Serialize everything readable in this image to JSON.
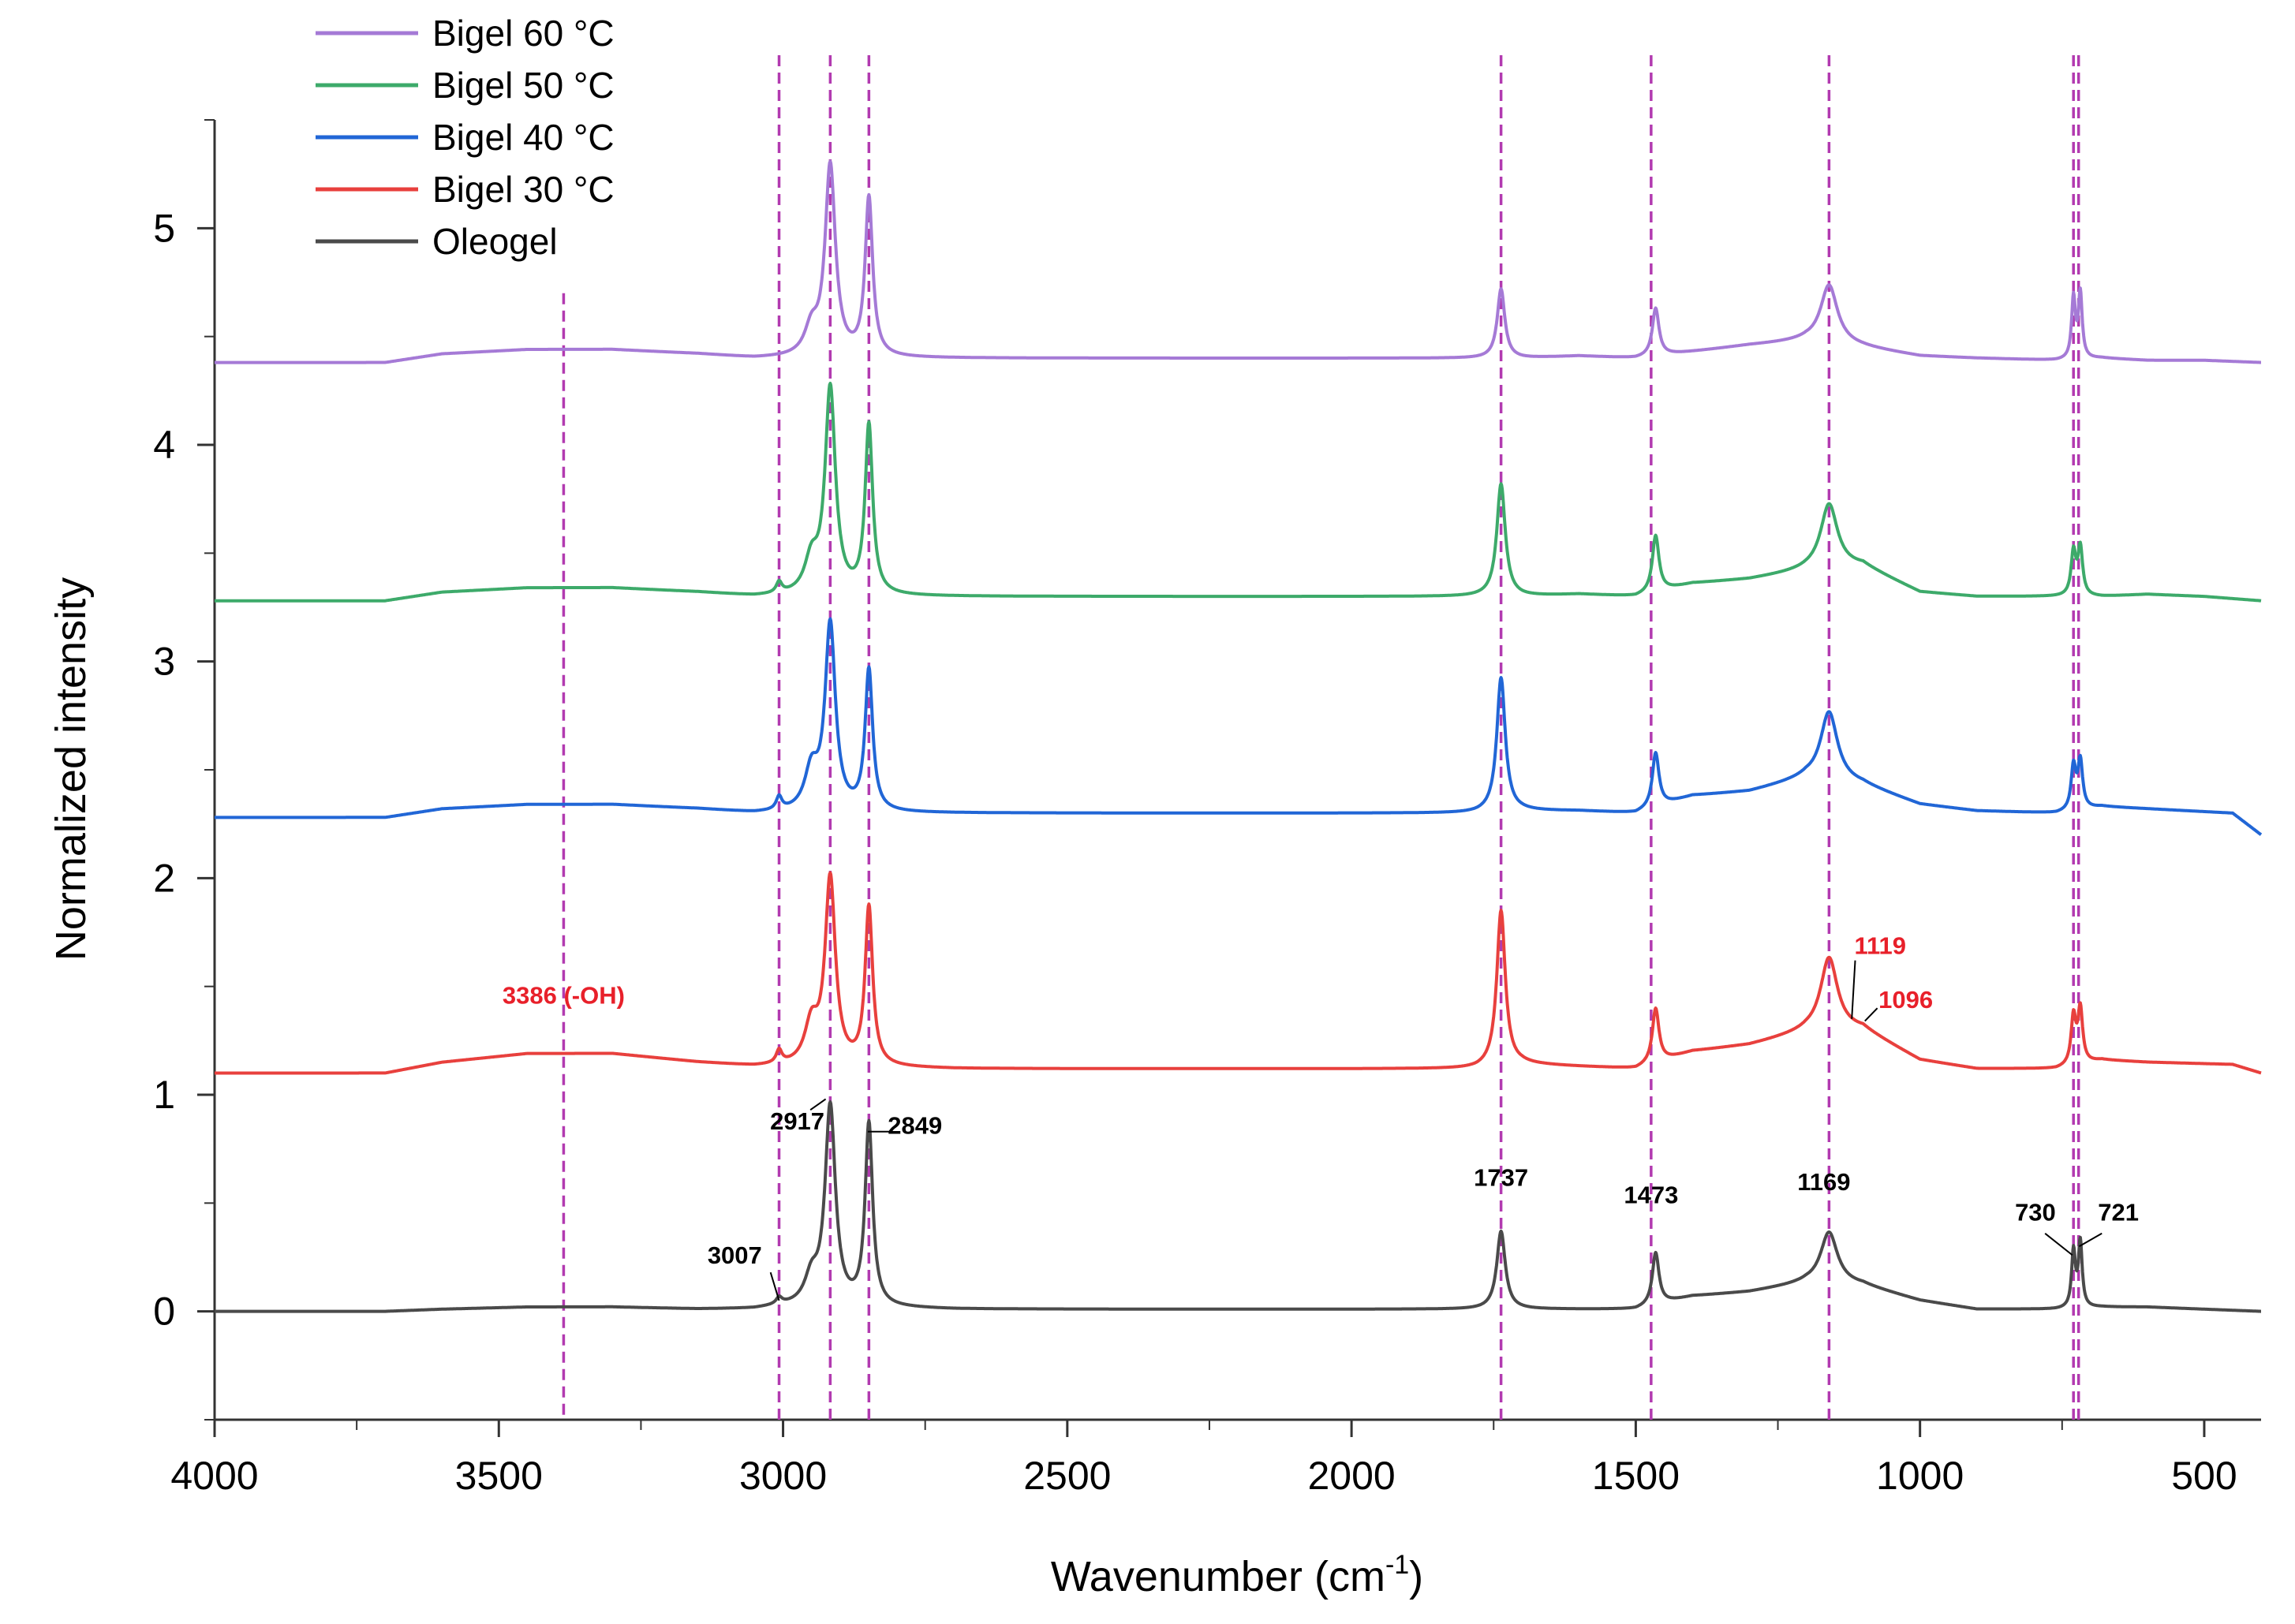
{
  "chart_data": {
    "type": "line",
    "title": "",
    "xlabel": "Wavenumber (cm",
    "xlabel_sup": "-1",
    "xlabel_close": ")",
    "ylabel": "Normalized intensity",
    "xlim": [
      4000,
      400
    ],
    "ylim": [
      -0.5,
      5.5
    ],
    "x_ticks": [
      4000,
      3500,
      3000,
      2500,
      2000,
      1500,
      1000,
      500
    ],
    "x_tick_labels": [
      "4000",
      "3500",
      "3000",
      "2500",
      "2000",
      "1500",
      "1000",
      "500"
    ],
    "y_ticks": [
      0,
      1,
      2,
      3,
      4,
      5
    ],
    "y_tick_labels": [
      "0",
      "1",
      "2",
      "3",
      "4",
      "5"
    ],
    "legend_position": "top-left",
    "series": [
      {
        "name": "Bigel 60 °C",
        "color": "#a57ad6",
        "offset": 4.38,
        "background": [
          [
            4000,
            0
          ],
          [
            3700,
            0
          ],
          [
            3600,
            0.04
          ],
          [
            3450,
            0.06
          ],
          [
            3300,
            0.06
          ],
          [
            3150,
            0.04
          ],
          [
            3050,
            0.02
          ],
          [
            3000,
            0.02
          ],
          [
            2700,
            0.02
          ],
          [
            2200,
            0.02
          ],
          [
            1900,
            0.02
          ],
          [
            1780,
            0.02
          ],
          [
            1700,
            0.02
          ],
          [
            1600,
            0.03
          ],
          [
            1500,
            0.02
          ],
          [
            1400,
            0.05
          ],
          [
            1300,
            0.08
          ],
          [
            1200,
            0.1
          ],
          [
            1100,
            0.07
          ],
          [
            1000,
            0.03
          ],
          [
            900,
            0.02
          ],
          [
            760,
            0.01
          ],
          [
            680,
            0.02
          ],
          [
            600,
            0.01
          ],
          [
            500,
            0.01
          ],
          [
            400,
            0
          ]
        ],
        "peaks": [
          [
            2950,
            0.12,
            14
          ],
          [
            2917,
            0.88,
            11
          ],
          [
            2849,
            0.73,
            8
          ],
          [
            1737,
            0.32,
            8
          ],
          [
            1465,
            0.22,
            7
          ],
          [
            1160,
            0.27,
            18
          ],
          [
            730,
            0.28,
            4
          ],
          [
            718,
            0.3,
            4
          ]
        ]
      },
      {
        "name": "Bigel 50 °C",
        "color": "#3daa6a",
        "offset": 3.28,
        "background": [
          [
            4000,
            0
          ],
          [
            3700,
            0
          ],
          [
            3600,
            0.04
          ],
          [
            3450,
            0.06
          ],
          [
            3300,
            0.06
          ],
          [
            3150,
            0.04
          ],
          [
            3050,
            0.02
          ],
          [
            3000,
            0.02
          ],
          [
            2700,
            0.02
          ],
          [
            2200,
            0.02
          ],
          [
            1900,
            0.02
          ],
          [
            1780,
            0.02
          ],
          [
            1700,
            0.02
          ],
          [
            1600,
            0.03
          ],
          [
            1500,
            0.02
          ],
          [
            1400,
            0.08
          ],
          [
            1300,
            0.1
          ],
          [
            1200,
            0.14
          ],
          [
            1100,
            0.16
          ],
          [
            1000,
            0.04
          ],
          [
            900,
            0.02
          ],
          [
            760,
            0.02
          ],
          [
            680,
            0.02
          ],
          [
            600,
            0.03
          ],
          [
            500,
            0.02
          ],
          [
            400,
            0
          ]
        ],
        "peaks": [
          [
            3007,
            0.05,
            6
          ],
          [
            2950,
            0.15,
            14
          ],
          [
            2917,
            0.95,
            11
          ],
          [
            2849,
            0.78,
            8
          ],
          [
            1737,
            0.52,
            9
          ],
          [
            1465,
            0.26,
            7
          ],
          [
            1160,
            0.3,
            18
          ],
          [
            730,
            0.2,
            5
          ],
          [
            718,
            0.22,
            5
          ]
        ]
      },
      {
        "name": "Bigel 40 °C",
        "color": "#2166d6",
        "offset": 2.28,
        "background": [
          [
            4000,
            0
          ],
          [
            3700,
            0
          ],
          [
            3600,
            0.04
          ],
          [
            3450,
            0.06
          ],
          [
            3300,
            0.06
          ],
          [
            3150,
            0.04
          ],
          [
            3050,
            0.02
          ],
          [
            3000,
            0.02
          ],
          [
            2700,
            0.02
          ],
          [
            2200,
            0.02
          ],
          [
            1900,
            0.02
          ],
          [
            1780,
            0.02
          ],
          [
            1700,
            0.03
          ],
          [
            1600,
            0.03
          ],
          [
            1500,
            0.02
          ],
          [
            1400,
            0.1
          ],
          [
            1300,
            0.12
          ],
          [
            1200,
            0.18
          ],
          [
            1100,
            0.15
          ],
          [
            1000,
            0.06
          ],
          [
            900,
            0.03
          ],
          [
            760,
            0.02
          ],
          [
            680,
            0.05
          ],
          [
            600,
            0.04
          ],
          [
            450,
            0.02
          ],
          [
            400,
            -0.08
          ]
        ],
        "peaks": [
          [
            3007,
            0.06,
            6
          ],
          [
            2950,
            0.18,
            14
          ],
          [
            2917,
            0.86,
            11
          ],
          [
            2849,
            0.65,
            8
          ],
          [
            1737,
            0.62,
            9
          ],
          [
            1465,
            0.25,
            7
          ],
          [
            1160,
            0.32,
            18
          ],
          [
            730,
            0.2,
            5
          ],
          [
            718,
            0.22,
            5
          ]
        ]
      },
      {
        "name": "Bigel 30 °C",
        "color": "#e8403d",
        "offset": 1.1,
        "background": [
          [
            4000,
            0
          ],
          [
            3700,
            0
          ],
          [
            3600,
            0.05
          ],
          [
            3450,
            0.09
          ],
          [
            3300,
            0.09
          ],
          [
            3150,
            0.05
          ],
          [
            3050,
            0.03
          ],
          [
            3000,
            0.03
          ],
          [
            2700,
            0.02
          ],
          [
            2200,
            0.02
          ],
          [
            1900,
            0.02
          ],
          [
            1780,
            0.02
          ],
          [
            1700,
            0.04
          ],
          [
            1600,
            0.03
          ],
          [
            1500,
            0.02
          ],
          [
            1400,
            0.1
          ],
          [
            1300,
            0.13
          ],
          [
            1200,
            0.19
          ],
          [
            1100,
            0.2
          ],
          [
            1000,
            0.06
          ],
          [
            900,
            0.02
          ],
          [
            760,
            0.02
          ],
          [
            680,
            0.06
          ],
          [
            600,
            0.05
          ],
          [
            450,
            0.04
          ],
          [
            400,
            0
          ]
        ],
        "peaks": [
          [
            3007,
            0.06,
            6
          ],
          [
            2950,
            0.18,
            14
          ],
          [
            2917,
            0.86,
            11
          ],
          [
            2849,
            0.73,
            8
          ],
          [
            1737,
            0.72,
            9
          ],
          [
            1465,
            0.25,
            7
          ],
          [
            1160,
            0.34,
            18
          ],
          [
            730,
            0.22,
            5
          ],
          [
            718,
            0.25,
            5
          ]
        ]
      },
      {
        "name": "Oleogel",
        "color": "#4a4a4a",
        "offset": 0.0,
        "background": [
          [
            4000,
            0
          ],
          [
            3700,
            0
          ],
          [
            3600,
            0.01
          ],
          [
            3450,
            0.02
          ],
          [
            3300,
            0.02
          ],
          [
            3150,
            0.01
          ],
          [
            3050,
            0.01
          ],
          [
            3000,
            0.02
          ],
          [
            2700,
            0.01
          ],
          [
            2200,
            0.01
          ],
          [
            1900,
            0.01
          ],
          [
            1780,
            0.01
          ],
          [
            1700,
            0.01
          ],
          [
            1600,
            0.01
          ],
          [
            1500,
            0.01
          ],
          [
            1400,
            0.07
          ],
          [
            1300,
            0.09
          ],
          [
            1200,
            0.13
          ],
          [
            1100,
            0.12
          ],
          [
            1000,
            0.05
          ],
          [
            900,
            0.01
          ],
          [
            760,
            0.01
          ],
          [
            680,
            0.02
          ],
          [
            600,
            0.02
          ],
          [
            500,
            0.01
          ],
          [
            400,
            0
          ]
        ],
        "peaks": [
          [
            3007,
            0.03,
            6
          ],
          [
            2950,
            0.12,
            14
          ],
          [
            2917,
            0.92,
            11
          ],
          [
            2849,
            0.84,
            8
          ],
          [
            1737,
            0.36,
            9
          ],
          [
            1465,
            0.24,
            7
          ],
          [
            1160,
            0.24,
            18
          ],
          [
            730,
            0.26,
            4
          ],
          [
            718,
            0.3,
            4
          ]
        ]
      }
    ],
    "reference_lines": {
      "color": "#b23ab0",
      "lines": [
        {
          "x": 3386,
          "y_top": 4.7
        },
        {
          "x": 3007,
          "y_top": 5.8
        },
        {
          "x": 2917,
          "y_top": 5.8
        },
        {
          "x": 2849,
          "y_top": 5.8
        },
        {
          "x": 1737,
          "y_top": 5.8
        },
        {
          "x": 1473,
          "y_top": 5.8
        },
        {
          "x": 1160,
          "y_top": 5.8
        },
        {
          "x": 730,
          "y_top": 5.8
        },
        {
          "x": 721,
          "y_top": 5.8
        }
      ]
    },
    "annotations": [
      {
        "text": "3386 (-OH)",
        "color": "#e8202a",
        "x": 3386,
        "y": 1.42
      },
      {
        "text": "2917",
        "color": "#000000",
        "x": 2975,
        "y": 0.84
      },
      {
        "text": "2849",
        "color": "#000000",
        "x": 2768,
        "y": 0.82
      },
      {
        "text": "3007",
        "color": "#000000",
        "x": 3085,
        "y": 0.22
      },
      {
        "text": "1737",
        "color": "#000000",
        "x": 1737,
        "y": 0.58
      },
      {
        "text": "1473",
        "color": "#000000",
        "x": 1473,
        "y": 0.5
      },
      {
        "text": "1169",
        "color": "#000000",
        "x": 1169,
        "y": 0.56
      },
      {
        "text": "730",
        "color": "#000000",
        "x": 797,
        "y": 0.42
      },
      {
        "text": "721",
        "color": "#000000",
        "x": 651,
        "y": 0.42
      },
      {
        "text": "1119",
        "color": "#e8202a",
        "x": 1070,
        "y": 1.65
      },
      {
        "text": "1096",
        "color": "#e8202a",
        "x": 1025,
        "y": 1.4
      }
    ],
    "annotation_leaders": [
      {
        "color": "#000000",
        "x1": 2952,
        "y1": 0.93,
        "x2": 2925,
        "y2": 0.98
      },
      {
        "color": "#000000",
        "x1": 2808,
        "y1": 0.83,
        "x2": 2851,
        "y2": 0.83
      },
      {
        "color": "#000000",
        "x1": 3022,
        "y1": 0.18,
        "x2": 3007,
        "y2": 0.05
      },
      {
        "color": "#000000",
        "x1": 780,
        "y1": 0.36,
        "x2": 732,
        "y2": 0.26
      },
      {
        "color": "#000000",
        "x1": 680,
        "y1": 0.36,
        "x2": 720,
        "y2": 0.3
      },
      {
        "color": "#000000",
        "x1": 1114,
        "y1": 1.62,
        "x2": 1120,
        "y2": 1.35
      },
      {
        "color": "#000000",
        "x1": 1075,
        "y1": 1.4,
        "x2": 1097,
        "y2": 1.34
      }
    ]
  }
}
